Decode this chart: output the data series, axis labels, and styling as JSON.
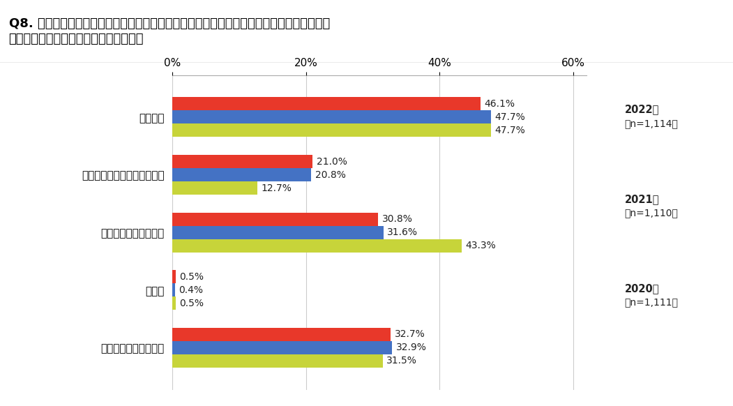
{
  "title_line1": "Q8. ご自宅が「地震」で被災した際に、ご自宅を再建する費用の捻出方法としてどのような",
  "title_line2": "　準備をしていますか？【複数回答可】",
  "categories": [
    "地震保険",
    "共済等の地震保険以外の補償",
    "貯蓄やその他金融資産",
    "その他",
    "特に準備はしていない"
  ],
  "series": {
    "2022年": [
      46.1,
      21.0,
      30.8,
      0.5,
      32.7
    ],
    "2021年": [
      47.7,
      20.8,
      31.6,
      0.4,
      32.9
    ],
    "2020年": [
      47.7,
      12.7,
      43.3,
      0.5,
      31.5
    ]
  },
  "colors": {
    "2022年": "#e8382a",
    "2021年": "#4472c4",
    "2020年": "#c7d43a"
  },
  "legend_items": [
    {
      "label": "2022年",
      "sublabel": "（n=1,114）",
      "key": "2022年"
    },
    {
      "label": "2021年",
      "sublabel": "（n=1,110）",
      "key": "2021年"
    },
    {
      "label": "2020年",
      "sublabel": "（n=1,111）",
      "key": "2020年"
    }
  ],
  "xlim": [
    0,
    62
  ],
  "xticks": [
    0,
    20,
    40,
    60
  ],
  "xticklabels": [
    "0%",
    "20%",
    "40%",
    "60%"
  ],
  "bar_height": 0.23,
  "title_fontsize": 13,
  "tick_fontsize": 11,
  "label_fontsize": 10,
  "bg_color": "#ffffff",
  "header_bg": "#e0e0e0"
}
